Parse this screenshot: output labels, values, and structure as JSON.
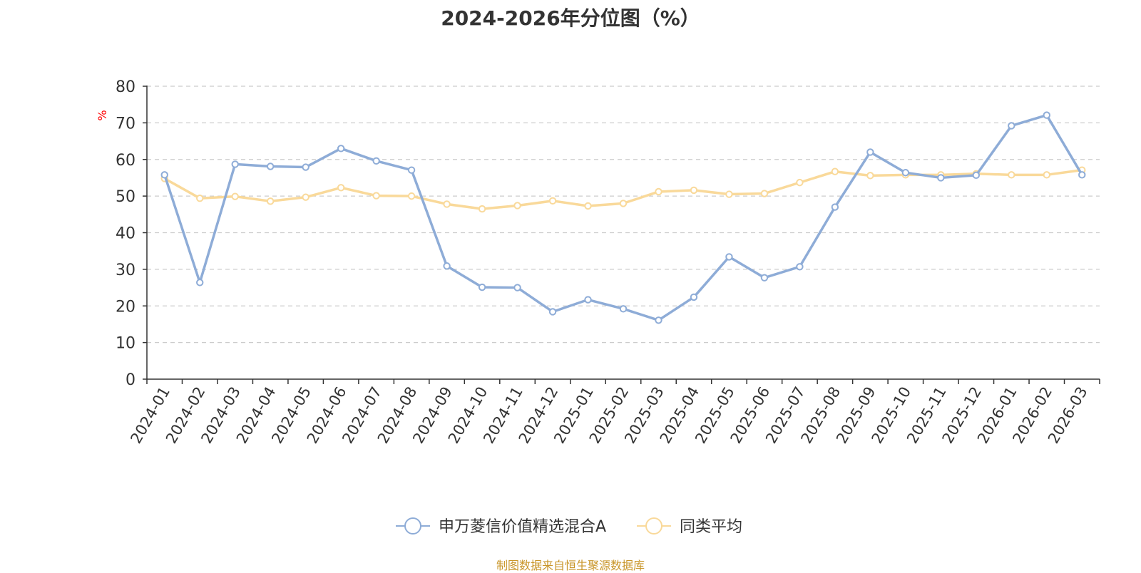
{
  "title": "2024-2026年分位图（%）",
  "source": "制图数据来自恒生聚源数据库",
  "colors": {
    "series_a": "#8eacd7",
    "series_b": "#f9d99a",
    "axis": "#333333",
    "grid": "#cccccc",
    "ylabel": "#ff0000"
  },
  "chart_data": {
    "type": "line",
    "ylabel": "%",
    "ylim": [
      0,
      80
    ],
    "yticks": [
      0,
      10,
      20,
      30,
      40,
      50,
      60,
      70,
      80
    ],
    "grid": true,
    "legend_position": "bottom-center",
    "x": [
      "2024-01",
      "2024-02",
      "2024-03",
      "2024-04",
      "2024-05",
      "2024-06",
      "2024-07",
      "2024-08",
      "2024-09",
      "2024-10",
      "2024-11",
      "2024-12",
      "2025-01",
      "2025-02",
      "2025-03",
      "2025-04",
      "2025-05",
      "2025-06",
      "2025-07",
      "2025-08",
      "2025-09",
      "2025-10",
      "2025-11",
      "2025-12",
      "2026-01",
      "2026-02",
      "2026-03"
    ],
    "series": [
      {
        "name": "申万菱信价值精选混合A",
        "values": [
          55.8,
          26.4,
          58.7,
          58.1,
          57.9,
          63.0,
          59.6,
          57.1,
          30.9,
          25.1,
          25.0,
          18.4,
          21.7,
          19.2,
          16.1,
          22.4,
          33.4,
          27.7,
          30.7,
          47.0,
          62.0,
          56.4,
          55.0,
          55.7,
          69.2,
          72.1,
          55.8
        ]
      },
      {
        "name": "同类平均",
        "values": [
          54.8,
          49.4,
          49.9,
          48.6,
          49.7,
          52.3,
          50.1,
          50.0,
          47.8,
          46.5,
          47.4,
          48.7,
          47.3,
          48.0,
          51.2,
          51.6,
          50.5,
          50.7,
          53.7,
          56.7,
          55.6,
          55.8,
          55.8,
          56.1,
          55.8,
          55.8,
          57.1
        ]
      }
    ]
  }
}
